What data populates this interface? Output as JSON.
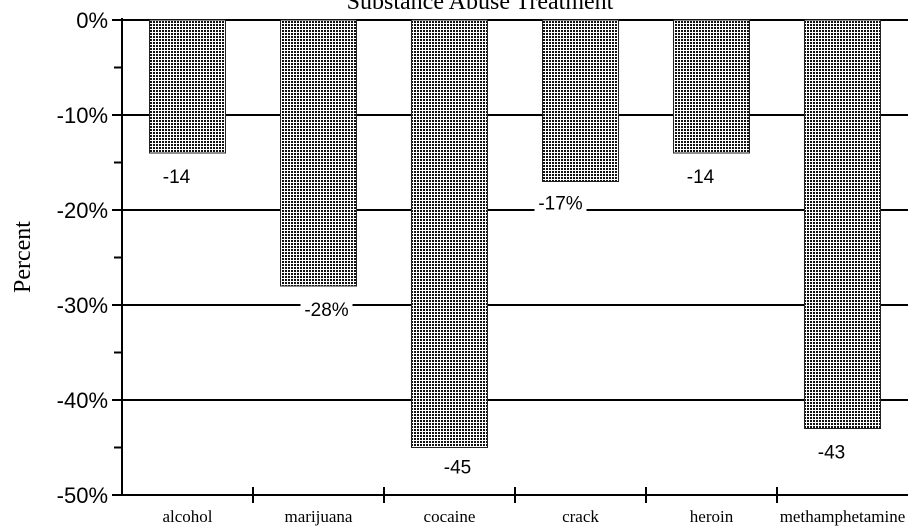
{
  "chart_data": {
    "type": "bar",
    "title": "Substance Abuse Treatment",
    "ylabel": "Percent",
    "xlabel": "",
    "categories": [
      "alcohol",
      "marijuana",
      "cocaine",
      "crack",
      "heroin",
      "methamphetamine"
    ],
    "values": [
      -14,
      -28,
      -45,
      -17,
      -14,
      -43
    ],
    "data_labels": [
      "-14",
      "-28%",
      "-45",
      "-17%",
      "-14",
      "-43"
    ],
    "ylim": [
      -50,
      0
    ],
    "yticks": [
      0,
      -10,
      -20,
      -30,
      -40,
      -50
    ],
    "ytick_labels": [
      "0%",
      "-10%",
      "-20%",
      "-30%",
      "-40%",
      "-50%"
    ],
    "grid": true,
    "legend": "none",
    "bar_color": "#7a7a7a"
  }
}
